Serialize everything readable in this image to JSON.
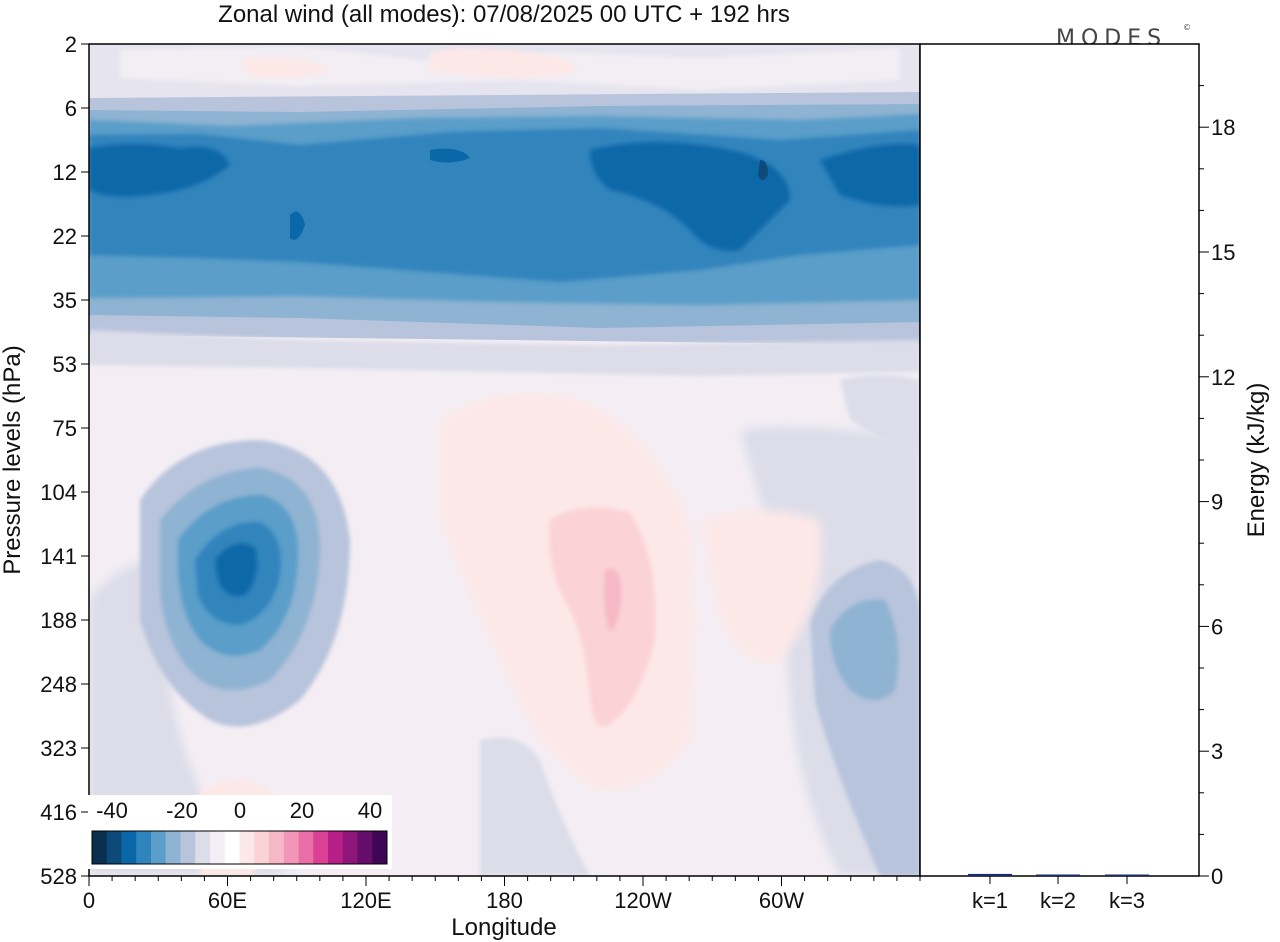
{
  "chart_data": {
    "type": "heatmap",
    "title": "Zonal wind (all modes):  07/08/2025  00 UTC  + 192 hrs",
    "brand": "MODES",
    "brand_mark": "©",
    "xlabel": "Longitude",
    "ylabel": "Pressure levels (hPa)",
    "y2label": "Energy (kJ/kg)",
    "x_ticks": [
      "0",
      "60E",
      "120E",
      "180",
      "120W",
      "60W"
    ],
    "y_ticks": [
      "2",
      "6",
      "12",
      "22",
      "35",
      "53",
      "75",
      "104",
      "141",
      "188",
      "248",
      "323",
      "416",
      "528"
    ],
    "y2_ticks": [
      "0",
      "3",
      "6",
      "9",
      "12",
      "15",
      "18"
    ],
    "y2_range": [
      0,
      20
    ],
    "colorbar": {
      "tick_labels": [
        "-40",
        "-20",
        "0",
        "20",
        "40"
      ],
      "colors": [
        "#0b2f4f",
        "#0d4a7a",
        "#0a68a8",
        "#3084bd",
        "#5a9ec9",
        "#8fb3d2",
        "#b8c4dc",
        "#dcdde9",
        "#f3eef4",
        "#ffffff",
        "#fde8e8",
        "#fbd3d6",
        "#f6b8c6",
        "#f395b8",
        "#ea6ea8",
        "#d94096",
        "#b81e88",
        "#8e1579",
        "#650d6a",
        "#3f0656"
      ]
    },
    "bar_chart": {
      "type": "bar",
      "categories": [
        "k=1",
        "k=2",
        "k=3"
      ],
      "values": [
        0.05,
        0.02,
        0.02
      ],
      "color": "#1a2a6c"
    }
  }
}
